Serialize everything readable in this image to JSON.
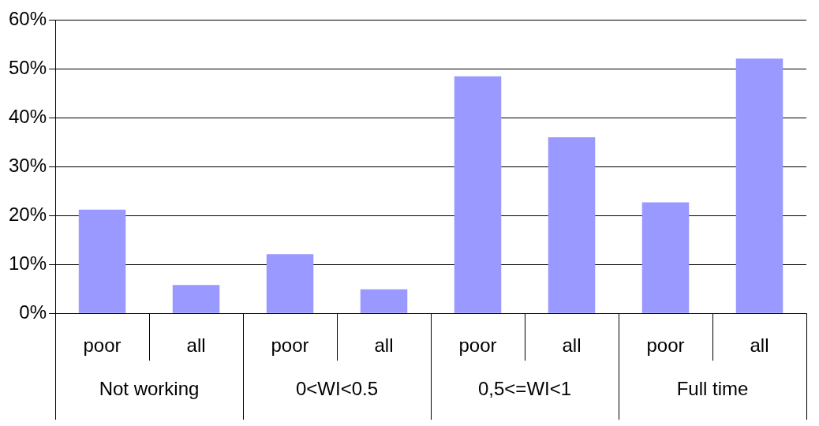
{
  "chart_data": {
    "type": "bar",
    "categories": [
      "poor",
      "all",
      "poor",
      "all",
      "poor",
      "all",
      "poor",
      "all"
    ],
    "values": [
      21.2,
      5.8,
      12.1,
      4.9,
      48.5,
      36,
      22.7,
      52.1
    ],
    "color": "#9999ff",
    "ylim": [
      0,
      60
    ],
    "yticks": [
      {
        "value": 0,
        "label": "0%"
      },
      {
        "value": 10,
        "label": "10%"
      },
      {
        "value": 20,
        "label": "20%"
      },
      {
        "value": 30,
        "label": "30%"
      },
      {
        "value": 40,
        "label": "40%"
      },
      {
        "value": 50,
        "label": "50%"
      },
      {
        "value": 60,
        "label": "60%"
      }
    ],
    "grid": "y",
    "legend": false,
    "annotations": [
      "Not working",
      "0<WI<0.5",
      "0,5<=WI<1",
      "Full time"
    ]
  }
}
